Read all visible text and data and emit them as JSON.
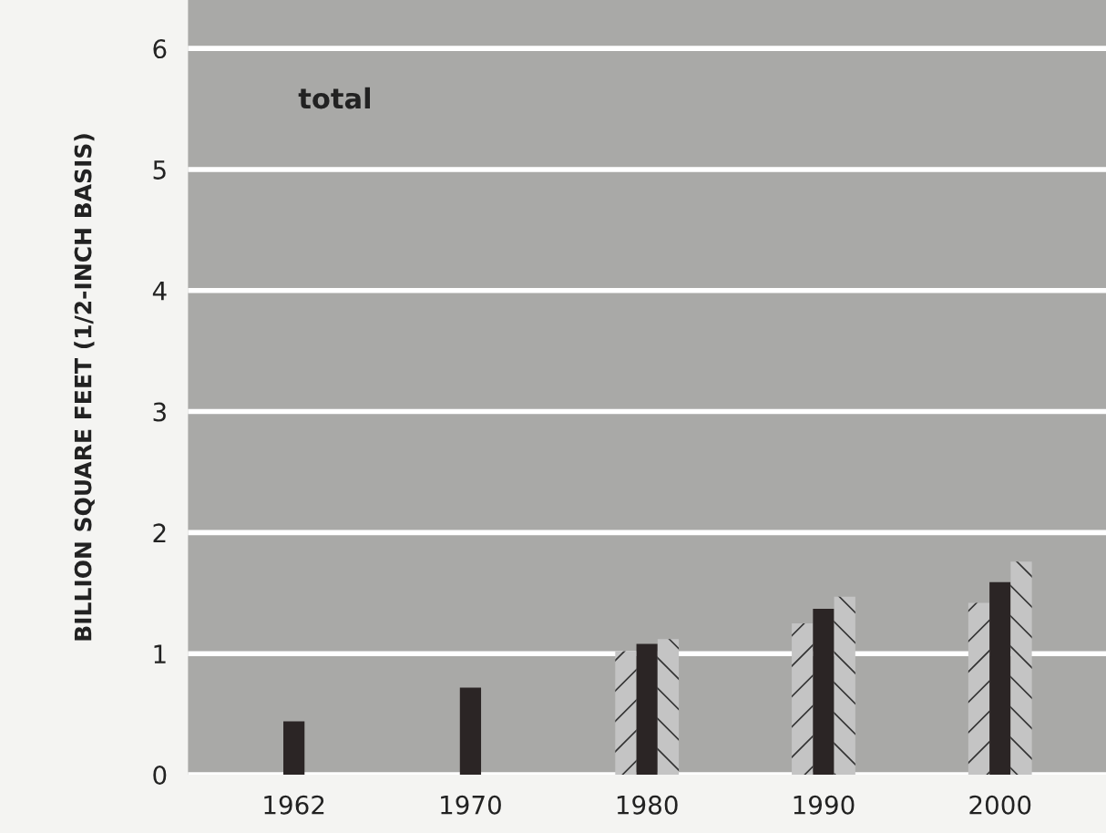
{
  "chart_data": {
    "type": "bar",
    "ylabel": "BILLION SQUARE FEET (1/2-INCH BASIS)",
    "categories": [
      "1962",
      "1970",
      "1980",
      "1990",
      "2000"
    ],
    "series": [
      {
        "color": "#c4c4c4",
        "values": [
          null,
          null,
          1.02,
          1.25,
          1.42
        ]
      },
      {
        "color": "#2b2525",
        "values": [
          0.44,
          0.72,
          1.08,
          1.37,
          1.59
        ]
      },
      {
        "color": "#c4c4c4",
        "values": [
          null,
          null,
          1.12,
          1.47,
          1.76
        ]
      }
    ],
    "ylim": [
      0,
      6.4
    ],
    "yticks": [
      0,
      1,
      2,
      3,
      4,
      5,
      6
    ],
    "grid": "y",
    "annotations": [
      "total"
    ]
  }
}
